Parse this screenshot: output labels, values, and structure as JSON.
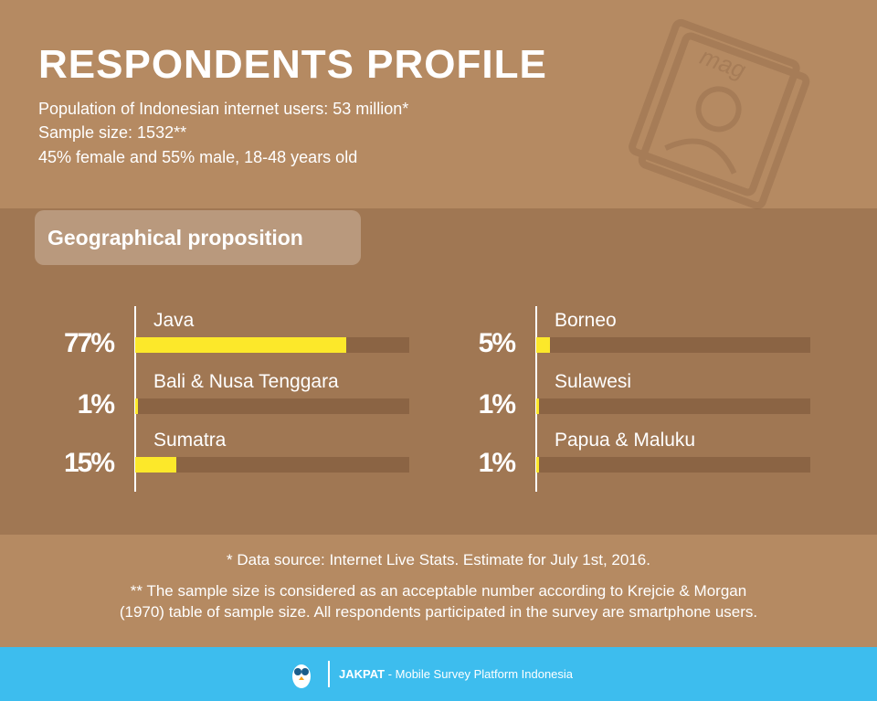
{
  "header": {
    "title": "RESPONDENTS PROFILE",
    "icon_text": "mag",
    "lines": [
      "Population of Indonesian internet users: 53 million*",
      "Sample size: 1532**",
      "45% female and 55% male, 18-48 years old"
    ]
  },
  "section_title": "Geographical proposition",
  "chart_data": [
    {
      "type": "bar",
      "orientation": "horizontal",
      "categories": [
        "Java",
        "Bali & Nusa Tenggara",
        "Sumatra"
      ],
      "values": [
        77,
        1,
        15
      ],
      "value_labels": [
        "77%",
        "1%",
        "15%"
      ],
      "xlim": [
        0,
        100
      ],
      "color": "#fce82a",
      "track_color": "#8b6444"
    },
    {
      "type": "bar",
      "orientation": "horizontal",
      "categories": [
        "Borneo",
        "Sulawesi",
        "Papua & Maluku"
      ],
      "values": [
        5,
        1,
        1
      ],
      "value_labels": [
        "5%",
        "1%",
        "1%"
      ],
      "xlim": [
        0,
        100
      ],
      "color": "#fce82a",
      "track_color": "#8b6444"
    }
  ],
  "notes": [
    "* Data source: Internet Live Stats. Estimate for July 1st, 2016.",
    "** The sample size is considered as an acceptable number according to Krejcie & Morgan",
    "(1970) table of sample size. All respondents participated in the survey are smartphone users."
  ],
  "footer": {
    "brand": "JAKPAT",
    "tagline": "- Mobile Survey Platform Indonesia"
  }
}
